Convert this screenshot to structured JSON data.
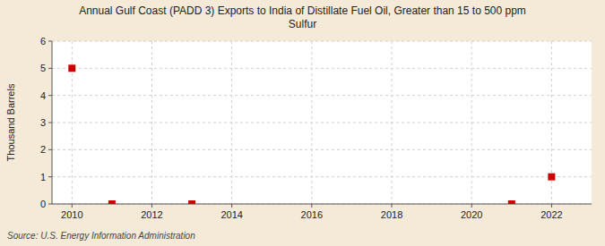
{
  "chart_data": {
    "type": "scatter",
    "title": "Annual Gulf Coast (PADD 3) Exports to India of Distillate Fuel Oil, Greater than 15 to 500 ppm\nSulfur",
    "y_label": "Thousand Barrels",
    "source": "Source: U.S. Energy Information Administration",
    "x": [
      2010,
      2011,
      2013,
      2021,
      2022
    ],
    "values": [
      5,
      0,
      0,
      0,
      1
    ],
    "xlim": [
      2009.5,
      2023.0
    ],
    "ylim": [
      0,
      6
    ],
    "xticks": [
      2010,
      2012,
      2014,
      2016,
      2018,
      2020,
      2022
    ],
    "yticks": [
      0,
      1,
      2,
      3,
      4,
      5,
      6
    ],
    "color": "#cc0000",
    "marker": "square",
    "grid": true
  }
}
